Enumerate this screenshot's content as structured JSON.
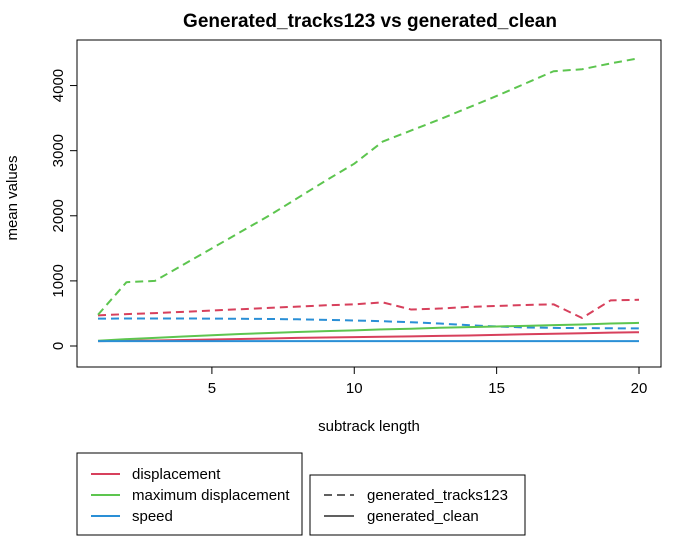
{
  "chart_data": {
    "type": "line",
    "title": "Generated_tracks123 vs generated_clean",
    "xlabel": "subtrack length",
    "ylabel": "mean values",
    "xlim": [
      1,
      20
    ],
    "ylim": [
      0,
      4500
    ],
    "x_ticks": [
      5,
      10,
      15,
      20
    ],
    "y_ticks": [
      0,
      1000,
      2000,
      3000,
      4000
    ],
    "x": [
      1,
      2,
      3,
      4,
      5,
      6,
      7,
      8,
      9,
      10,
      11,
      12,
      13,
      14,
      15,
      16,
      17,
      18,
      19,
      20
    ],
    "grid": false,
    "colors": {
      "displacement": "#d7405c",
      "maximum displacement": "#5dc54f",
      "speed": "#2a8fd6"
    },
    "series": [
      {
        "color_key": "displacement",
        "dataset": "generated_tracks123",
        "dash": true,
        "values": [
          470,
          490,
          505,
          525,
          545,
          565,
          585,
          605,
          625,
          640,
          670,
          560,
          575,
          600,
          615,
          630,
          640,
          430,
          700,
          710
        ]
      },
      {
        "color_key": "maximum displacement",
        "dataset": "generated_tracks123",
        "dash": true,
        "values": [
          480,
          980,
          1000,
          1250,
          1500,
          1750,
          2000,
          2270,
          2540,
          2800,
          3140,
          3310,
          3480,
          3660,
          3840,
          4030,
          4220,
          4250,
          4340,
          4420
        ]
      },
      {
        "color_key": "speed",
        "dataset": "generated_tracks123",
        "dash": true,
        "values": [
          420,
          422,
          423,
          422,
          421,
          418,
          415,
          410,
          402,
          392,
          380,
          365,
          345,
          320,
          300,
          285,
          278,
          275,
          272,
          270
        ]
      },
      {
        "color_key": "displacement",
        "dataset": "generated_clean",
        "dash": false,
        "values": [
          75,
          80,
          85,
          92,
          100,
          108,
          116,
          124,
          130,
          136,
          142,
          148,
          155,
          162,
          170,
          180,
          188,
          196,
          205,
          212
        ]
      },
      {
        "color_key": "maximum displacement",
        "dataset": "generated_clean",
        "dash": false,
        "values": [
          80,
          105,
          125,
          145,
          165,
          185,
          200,
          215,
          228,
          240,
          255,
          265,
          280,
          290,
          300,
          310,
          320,
          330,
          345,
          355
        ]
      },
      {
        "color_key": "speed",
        "dataset": "generated_clean",
        "dash": false,
        "values": [
          75,
          75,
          75,
          75,
          75,
          75,
          75,
          75,
          75,
          75,
          75,
          75,
          75,
          75,
          75,
          75,
          75,
          75,
          75,
          75
        ]
      }
    ],
    "legend_color": {
      "placement": "bottom-left",
      "entries": [
        {
          "label": "displacement",
          "color": "#d7405c"
        },
        {
          "label": "maximum displacement",
          "color": "#5dc54f"
        },
        {
          "label": "speed",
          "color": "#2a8fd6"
        }
      ]
    },
    "legend_linetype": {
      "placement": "bottom-center",
      "entries": [
        {
          "label": "generated_tracks123",
          "dash": true
        },
        {
          "label": "generated_clean",
          "dash": false
        }
      ]
    }
  }
}
